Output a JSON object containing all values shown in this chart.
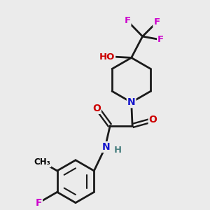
{
  "bg_color": "#ebebeb",
  "atom_colors": {
    "C": "#000000",
    "N": "#1414cc",
    "O": "#cc0000",
    "F": "#cc00cc",
    "H": "#4a8080"
  },
  "bond_color": "#1a1a1a",
  "bond_width": 2.0,
  "figsize": [
    3.0,
    3.0
  ],
  "dpi": 100,
  "xlim": [
    0,
    10
  ],
  "ylim": [
    0,
    10
  ]
}
